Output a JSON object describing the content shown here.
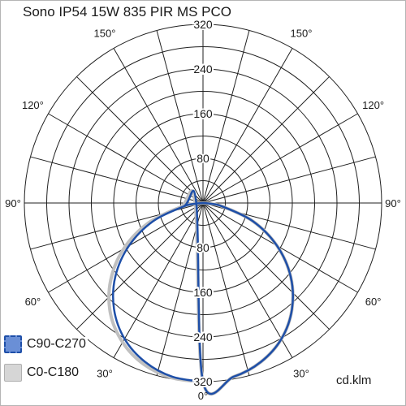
{
  "title": "Sono IP54 15W 835 PIR MS PCO",
  "unit_label": "cd.klm",
  "chart_data": {
    "type": "polar",
    "r_max": 320,
    "r_ticks": [
      80,
      160,
      240,
      320
    ],
    "angle_labels": [
      {
        "angle": 0,
        "text": "0°"
      },
      {
        "angle": 30,
        "text": "30°"
      },
      {
        "angle": -30,
        "text": "30°"
      },
      {
        "angle": 60,
        "text": "60°"
      },
      {
        "angle": -60,
        "text": "60°"
      },
      {
        "angle": 90,
        "text": "90°"
      },
      {
        "angle": -90,
        "text": "90°"
      },
      {
        "angle": 120,
        "text": "120°"
      },
      {
        "angle": -120,
        "text": "120°"
      },
      {
        "angle": 150,
        "text": "150°"
      },
      {
        "angle": -150,
        "text": "150°"
      }
    ],
    "series": [
      {
        "name": "C0-C180",
        "color": "#c0c0c0",
        "angles": [
          0,
          10,
          20,
          30,
          40,
          50,
          60,
          70,
          80,
          85,
          90
        ],
        "values_right": [
          320,
          316,
          303,
          281,
          248,
          205,
          153,
          95,
          35,
          12,
          0
        ],
        "values_left": [
          320,
          318,
          308,
          288,
          258,
          216,
          164,
          104,
          40,
          14,
          0
        ]
      },
      {
        "name": "C90-C270",
        "color": "#1e4fa8",
        "fill": "#6a8fd6",
        "angles": [
          0,
          10,
          20,
          30,
          40,
          50,
          60,
          70,
          80,
          85,
          90
        ],
        "values_right": [
          320,
          316,
          303,
          281,
          248,
          205,
          153,
          95,
          35,
          12,
          0
        ],
        "values_left": [
          320,
          316,
          303,
          281,
          248,
          205,
          153,
          95,
          35,
          12,
          0
        ]
      }
    ]
  }
}
